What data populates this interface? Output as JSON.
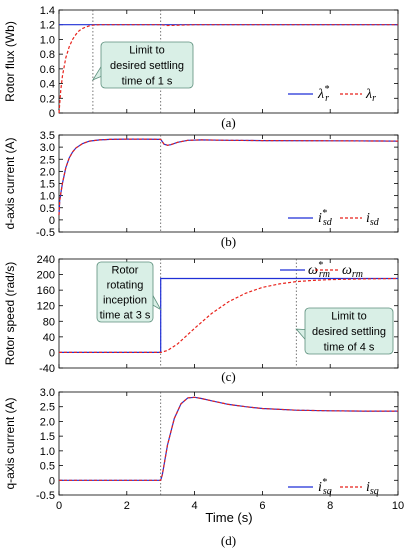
{
  "figure": {
    "x_label": "Time (s)",
    "x_ticks": [
      "0",
      "2",
      "4",
      "6",
      "8",
      "10"
    ]
  },
  "chart_data": [
    {
      "type": "line",
      "panel_label": "(a)",
      "ylabel": "Rotor flux (Wb)",
      "xlim": [
        0,
        10
      ],
      "ylim": [
        0,
        1.4
      ],
      "y_ticks": [
        "0",
        "0.2",
        "0.4",
        "0.6",
        "0.8",
        "1.0",
        "1.2",
        "1.4"
      ],
      "grid": false,
      "legend_placement": "bottom-right",
      "vlines": [
        1,
        3
      ],
      "series": [
        {
          "name": "λ*r",
          "name_base": "λ",
          "name_sup": "*",
          "name_sub": "r",
          "style": "solid",
          "color": "#1f2fd6",
          "x": [
            0,
            10
          ],
          "y": [
            1.2,
            1.2
          ]
        },
        {
          "name": "λr",
          "name_base": "λ",
          "name_sup": "",
          "name_sub": "r",
          "style": "dashed",
          "color": "#e8221b",
          "x": [
            0,
            0.05,
            0.1,
            0.2,
            0.3,
            0.4,
            0.5,
            0.6,
            0.7,
            0.8,
            0.9,
            1.0,
            1.2,
            1.5,
            2.0,
            3.0,
            3.2,
            4.0,
            10
          ],
          "y": [
            0,
            0.3,
            0.5,
            0.75,
            0.9,
            1.0,
            1.07,
            1.12,
            1.15,
            1.17,
            1.185,
            1.195,
            1.2,
            1.2,
            1.2,
            1.2,
            1.19,
            1.2,
            1.2
          ]
        }
      ],
      "annotations": [
        {
          "lines": [
            "Limit to",
            "desired settling",
            "time of 1 s"
          ],
          "target": [
            1,
            0.45
          ]
        }
      ]
    },
    {
      "type": "line",
      "panel_label": "(b)",
      "ylabel": "d-axis current (A)",
      "xlim": [
        0,
        10
      ],
      "ylim": [
        -0.5,
        3.5
      ],
      "y_ticks": [
        "-0.5",
        "0",
        "0.5",
        "1.0",
        "1.5",
        "2.0",
        "2.5",
        "3.0",
        "3.5"
      ],
      "grid": false,
      "legend_placement": "bottom-right",
      "vlines": [
        3
      ],
      "series": [
        {
          "name": "i*sd",
          "name_base": "i",
          "name_sup": "*",
          "name_sub": "sd",
          "style": "solid",
          "color": "#1f2fd6",
          "x": [
            0,
            0.02,
            0.1,
            0.2,
            0.3,
            0.4,
            0.5,
            0.7,
            0.9,
            1.2,
            1.5,
            2.0,
            2.5,
            3.0,
            3.1,
            3.2,
            3.3,
            3.5,
            3.8,
            4.2,
            5,
            6,
            8,
            10
          ],
          "y": [
            0.2,
            0.8,
            1.5,
            2.15,
            2.55,
            2.8,
            2.97,
            3.15,
            3.25,
            3.3,
            3.32,
            3.33,
            3.33,
            3.32,
            3.12,
            3.08,
            3.1,
            3.2,
            3.28,
            3.3,
            3.28,
            3.27,
            3.26,
            3.25
          ]
        },
        {
          "name": "isd",
          "name_base": "i",
          "name_sup": "",
          "name_sub": "sd",
          "style": "dashed",
          "color": "#e8221b",
          "x": [
            0,
            0.02,
            0.1,
            0.2,
            0.3,
            0.4,
            0.5,
            0.7,
            0.9,
            1.2,
            1.5,
            2.0,
            2.5,
            3.0,
            3.1,
            3.2,
            3.3,
            3.5,
            3.8,
            4.2,
            5,
            6,
            8,
            10
          ],
          "y": [
            0.2,
            0.8,
            1.5,
            2.15,
            2.55,
            2.8,
            2.97,
            3.15,
            3.25,
            3.3,
            3.32,
            3.33,
            3.33,
            3.32,
            3.12,
            3.08,
            3.1,
            3.2,
            3.28,
            3.3,
            3.28,
            3.27,
            3.26,
            3.25
          ]
        }
      ]
    },
    {
      "type": "line",
      "panel_label": "(c)",
      "ylabel": "Rotor speed (rad/s)",
      "xlim": [
        0,
        10
      ],
      "ylim": [
        -40,
        240
      ],
      "y_ticks": [
        "-40",
        "0",
        "40",
        "80",
        "120",
        "160",
        "200",
        "240"
      ],
      "grid": false,
      "legend_placement": "top-right",
      "vlines": [
        3,
        7
      ],
      "series": [
        {
          "name": "ω*rm",
          "name_base": "ω",
          "name_sup": "*",
          "name_sub": "rm",
          "style": "solid",
          "color": "#1f2fd6",
          "x": [
            0,
            3.0,
            3.0,
            10
          ],
          "y": [
            0,
            0,
            190,
            190
          ]
        },
        {
          "name": "ωrm",
          "name_base": "ω",
          "name_sup": "",
          "name_sub": "rm",
          "style": "dashed",
          "color": "#e8221b",
          "x": [
            0,
            3.0,
            3.2,
            3.5,
            4.0,
            4.5,
            5.0,
            5.5,
            6.0,
            6.5,
            7.0,
            7.5,
            8.0,
            9.0,
            10
          ],
          "y": [
            0,
            0,
            5,
            22,
            62,
            100,
            130,
            152,
            167,
            176,
            182,
            185,
            187,
            189,
            190
          ]
        }
      ],
      "annotations": [
        {
          "lines": [
            "Rotor",
            "rotating",
            "inception",
            "time at 3 s"
          ],
          "target": [
            3,
            110
          ]
        },
        {
          "lines": [
            "Limit to",
            "desired settling",
            "time of 4 s"
          ],
          "target": [
            7,
            60
          ]
        }
      ]
    },
    {
      "type": "line",
      "panel_label": "(d)",
      "ylabel": "q-axis current (A)",
      "xlim": [
        0,
        10
      ],
      "ylim": [
        -0.5,
        3.0
      ],
      "y_ticks": [
        "-0.5",
        "0",
        "0.5",
        "1.0",
        "1.5",
        "2.0",
        "2.5",
        "3.0"
      ],
      "grid": false,
      "legend_placement": "bottom-right",
      "vlines": [
        3
      ],
      "series": [
        {
          "name": "i*sq",
          "name_base": "i",
          "name_sup": "*",
          "name_sub": "sq",
          "style": "solid",
          "color": "#1f2fd6",
          "x": [
            0,
            3.0,
            3.05,
            3.2,
            3.4,
            3.6,
            3.8,
            4.0,
            4.2,
            4.5,
            5.0,
            5.5,
            6.0,
            7.0,
            8.0,
            9.0,
            10
          ],
          "y": [
            0,
            0,
            0.2,
            1.2,
            2.1,
            2.6,
            2.8,
            2.82,
            2.78,
            2.7,
            2.58,
            2.5,
            2.44,
            2.38,
            2.36,
            2.35,
            2.35
          ]
        },
        {
          "name": "isq",
          "name_base": "i",
          "name_sup": "",
          "name_sub": "sq",
          "style": "dashed",
          "color": "#e8221b",
          "x": [
            0,
            3.0,
            3.05,
            3.2,
            3.4,
            3.6,
            3.8,
            4.0,
            4.2,
            4.5,
            5.0,
            5.5,
            6.0,
            7.0,
            8.0,
            9.0,
            10
          ],
          "y": [
            0,
            0,
            0.2,
            1.2,
            2.1,
            2.6,
            2.8,
            2.82,
            2.78,
            2.7,
            2.58,
            2.5,
            2.44,
            2.38,
            2.36,
            2.35,
            2.35
          ]
        }
      ]
    }
  ],
  "colors": {
    "reference_line": "#1f2fd6",
    "measured_line": "#e8221b",
    "annotation_fill": "#d9efe6",
    "annotation_stroke": "#5c8f7c"
  }
}
